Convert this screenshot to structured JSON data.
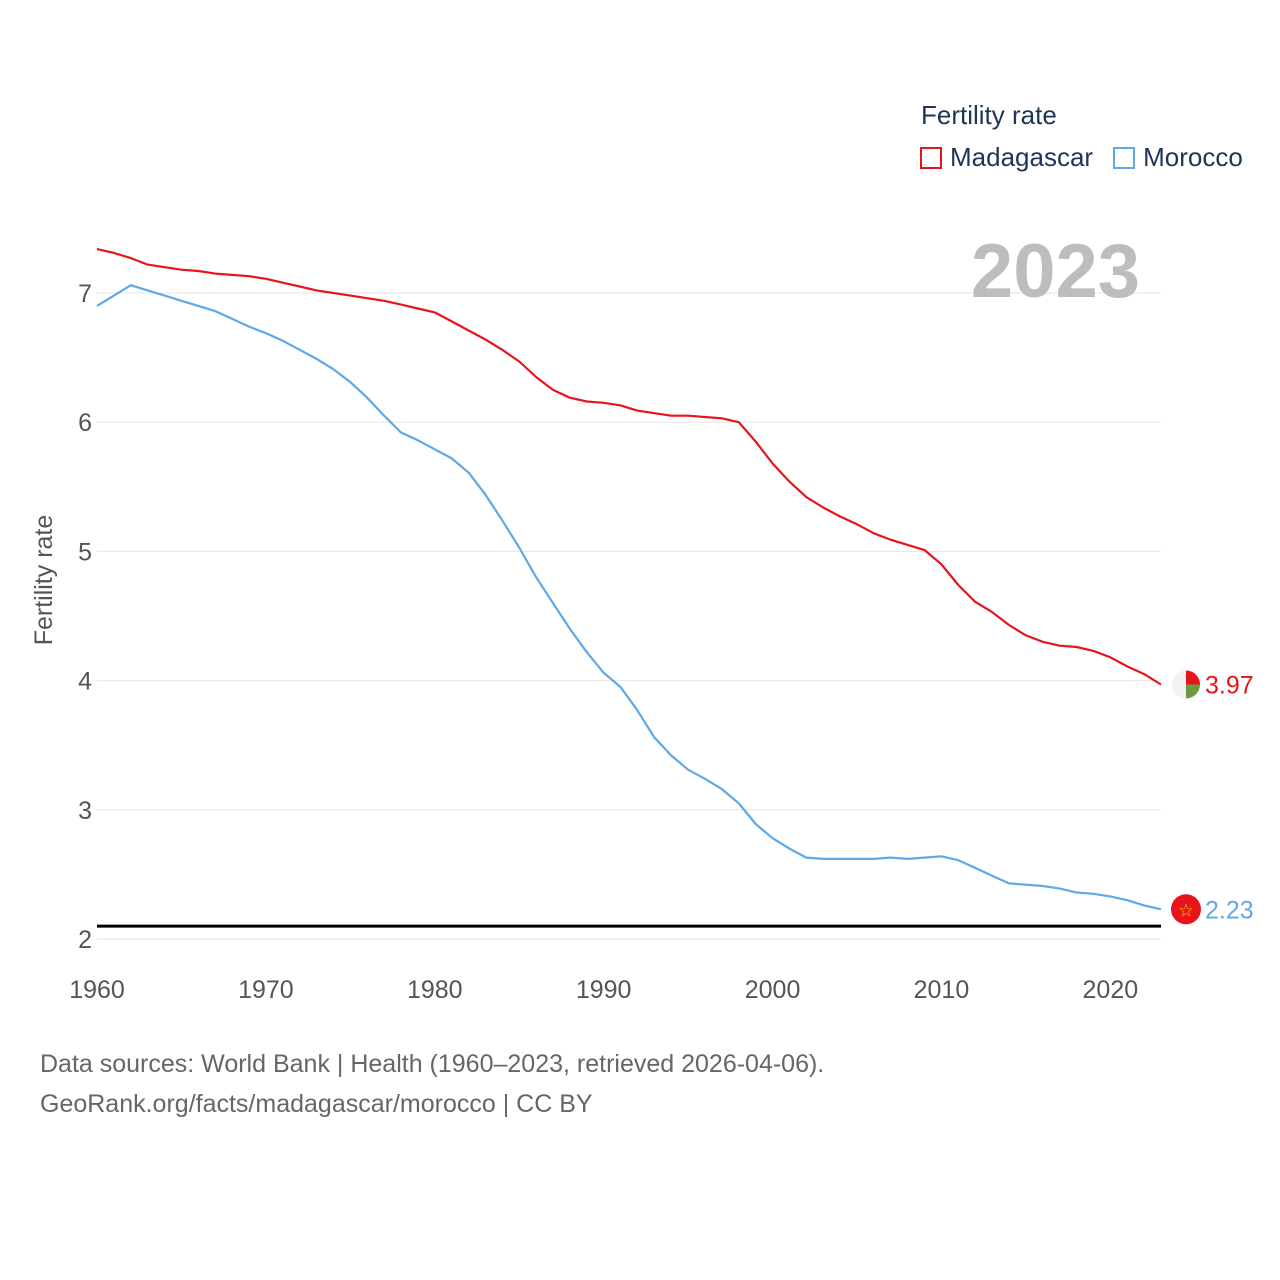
{
  "legend": {
    "title": "Fertility rate",
    "items": [
      {
        "label": "Madagascar",
        "color": "#e8141c"
      },
      {
        "label": "Morocco",
        "color": "#5fa8e6"
      }
    ]
  },
  "year_label": "2023",
  "footer": {
    "line1": "Data sources: World Bank | Health (1960–2023, retrieved 2026-04-06).",
    "line2": "GeoRank.org/facts/madagascar/morocco | CC BY"
  },
  "chart_data": {
    "type": "line",
    "title": "Fertility rate",
    "xlabel": "",
    "ylabel": "Fertility rate",
    "xlim": [
      1960,
      2023
    ],
    "ylim": [
      2,
      7.5
    ],
    "xticks": [
      1960,
      1970,
      1980,
      1990,
      2000,
      2010,
      2020
    ],
    "yticks": [
      2,
      3,
      4,
      5,
      6,
      7
    ],
    "reference_line": 2.1,
    "x": [
      1960,
      1961,
      1962,
      1963,
      1964,
      1965,
      1966,
      1967,
      1968,
      1969,
      1970,
      1971,
      1972,
      1973,
      1974,
      1975,
      1976,
      1977,
      1978,
      1979,
      1980,
      1981,
      1982,
      1983,
      1984,
      1985,
      1986,
      1987,
      1988,
      1989,
      1990,
      1991,
      1992,
      1993,
      1994,
      1995,
      1996,
      1997,
      1998,
      1999,
      2000,
      2001,
      2002,
      2003,
      2004,
      2005,
      2006,
      2007,
      2008,
      2009,
      2010,
      2011,
      2012,
      2013,
      2014,
      2015,
      2016,
      2017,
      2018,
      2019,
      2020,
      2021,
      2022,
      2023
    ],
    "series": [
      {
        "name": "Madagascar",
        "color": "#e8141c",
        "end_label": "3.97",
        "values": [
          7.34,
          7.31,
          7.27,
          7.22,
          7.2,
          7.18,
          7.17,
          7.15,
          7.14,
          7.13,
          7.11,
          7.08,
          7.05,
          7.02,
          7.0,
          6.98,
          6.96,
          6.94,
          6.91,
          6.88,
          6.85,
          6.78,
          6.71,
          6.64,
          6.56,
          6.47,
          6.35,
          6.25,
          6.19,
          6.16,
          6.15,
          6.13,
          6.09,
          6.07,
          6.05,
          6.05,
          6.04,
          6.03,
          6.0,
          5.85,
          5.68,
          5.54,
          5.42,
          5.34,
          5.27,
          5.21,
          5.14,
          5.09,
          5.05,
          5.01,
          4.9,
          4.74,
          4.61,
          4.53,
          4.43,
          4.35,
          4.3,
          4.27,
          4.26,
          4.23,
          4.18,
          4.11,
          4.05,
          3.97
        ]
      },
      {
        "name": "Morocco",
        "color": "#5fa8e6",
        "end_label": "2.23",
        "values": [
          6.9,
          6.98,
          7.06,
          7.02,
          6.98,
          6.94,
          6.9,
          6.86,
          6.8,
          6.74,
          6.69,
          6.63,
          6.56,
          6.49,
          6.41,
          6.31,
          6.19,
          6.05,
          5.92,
          5.86,
          5.79,
          5.72,
          5.61,
          5.44,
          5.24,
          5.03,
          4.8,
          4.6,
          4.4,
          4.22,
          4.06,
          3.95,
          3.77,
          3.56,
          3.42,
          3.31,
          3.24,
          3.16,
          3.05,
          2.89,
          2.78,
          2.7,
          2.63,
          2.62,
          2.62,
          2.62,
          2.62,
          2.63,
          2.62,
          2.63,
          2.64,
          2.61,
          2.55,
          2.49,
          2.43,
          2.42,
          2.41,
          2.39,
          2.36,
          2.35,
          2.33,
          2.3,
          2.26,
          2.23
        ]
      }
    ]
  }
}
